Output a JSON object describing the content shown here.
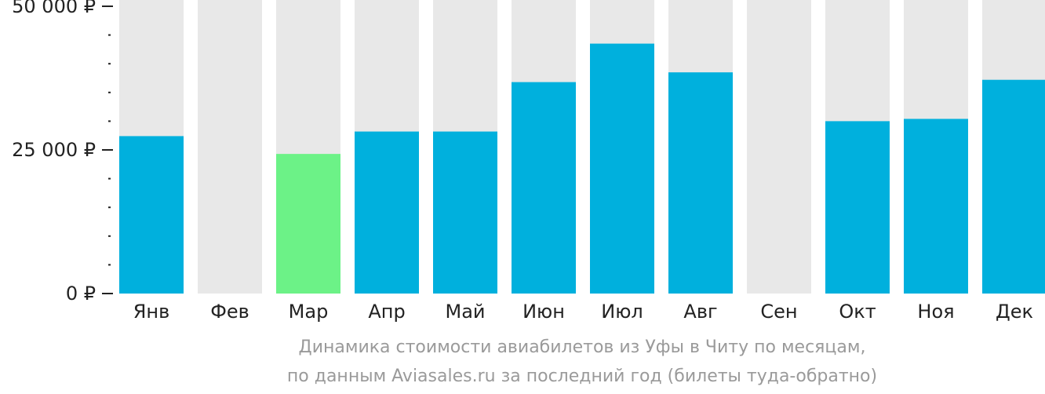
{
  "chart_data": {
    "type": "bar",
    "title": "",
    "xlabel": "",
    "ylabel": "",
    "ylim": [
      0,
      50000
    ],
    "y_ticks": [
      {
        "value": 0,
        "label": "0 ₽"
      },
      {
        "value": 25000,
        "label": "25 000 ₽"
      },
      {
        "value": 50000,
        "label": "50 000 ₽"
      }
    ],
    "minor_tick_step": 5000,
    "categories": [
      "Янв",
      "Фев",
      "Мар",
      "Апр",
      "Май",
      "Июн",
      "Июл",
      "Авг",
      "Сен",
      "Окт",
      "Ноя",
      "Дек"
    ],
    "values": [
      27400,
      null,
      24300,
      28200,
      28200,
      36800,
      43500,
      38500,
      null,
      30000,
      30400,
      37200
    ],
    "highlight_index": 2,
    "colors": {
      "bar": "#00b0dd",
      "highlight": "#6cf287",
      "background_column": "#e8e8e8",
      "axis_text": "#222222",
      "tick": "#222222"
    }
  },
  "caption": {
    "line1": "Динамика стоимости авиабилетов из Уфы в Читу по месяцам,",
    "line2": "по данным Aviasales.ru за последний год (билеты туда-обратно)"
  }
}
